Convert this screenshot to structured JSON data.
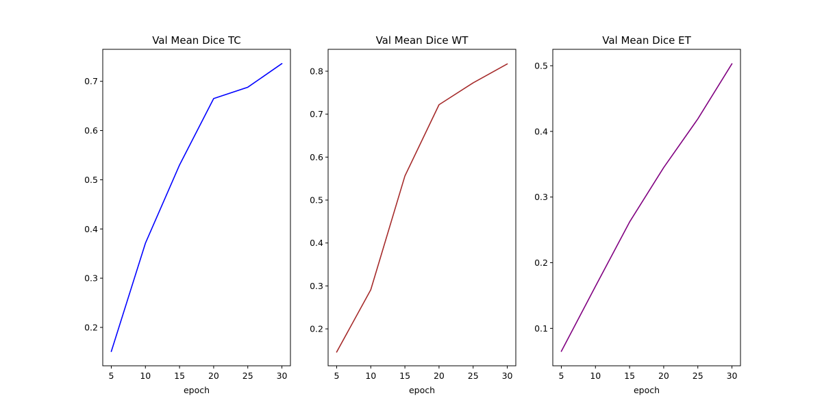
{
  "chart_data": [
    {
      "type": "line",
      "title": "Val Mean Dice TC",
      "xlabel": "epoch",
      "ylabel": "",
      "x": [
        5,
        10,
        15,
        20,
        25,
        30
      ],
      "series": [
        {
          "values": [
            0.151,
            0.371,
            0.53,
            0.665,
            0.688,
            0.736
          ],
          "color": "#0000ff"
        }
      ],
      "xticks": [
        5,
        10,
        15,
        20,
        25,
        30
      ],
      "yticks": [
        0.2,
        0.3,
        0.4,
        0.5,
        0.6,
        0.7
      ],
      "xlim": [
        3.75,
        31.25
      ],
      "ylim": [
        0.122,
        0.765
      ],
      "grid": false
    },
    {
      "type": "line",
      "title": "Val Mean Dice WT",
      "xlabel": "epoch",
      "ylabel": "",
      "x": [
        5,
        10,
        15,
        20,
        25,
        30
      ],
      "series": [
        {
          "values": [
            0.146,
            0.291,
            0.556,
            0.722,
            0.773,
            0.817
          ],
          "color": "#a52a2a"
        }
      ],
      "xticks": [
        5,
        10,
        15,
        20,
        25,
        30
      ],
      "yticks": [
        0.2,
        0.3,
        0.4,
        0.5,
        0.6,
        0.7,
        0.8
      ],
      "xlim": [
        3.75,
        31.25
      ],
      "ylim": [
        0.114,
        0.851
      ],
      "grid": false
    },
    {
      "type": "line",
      "title": "Val Mean Dice ET",
      "xlabel": "epoch",
      "ylabel": "",
      "x": [
        5,
        10,
        15,
        20,
        25,
        30
      ],
      "series": [
        {
          "values": [
            0.065,
            0.164,
            0.262,
            0.345,
            0.419,
            0.503
          ],
          "color": "#800080"
        }
      ],
      "xticks": [
        5,
        10,
        15,
        20,
        25,
        30
      ],
      "yticks": [
        0.1,
        0.2,
        0.3,
        0.4,
        0.5
      ],
      "xlim": [
        3.75,
        31.25
      ],
      "ylim": [
        0.043,
        0.525
      ],
      "grid": false
    }
  ]
}
